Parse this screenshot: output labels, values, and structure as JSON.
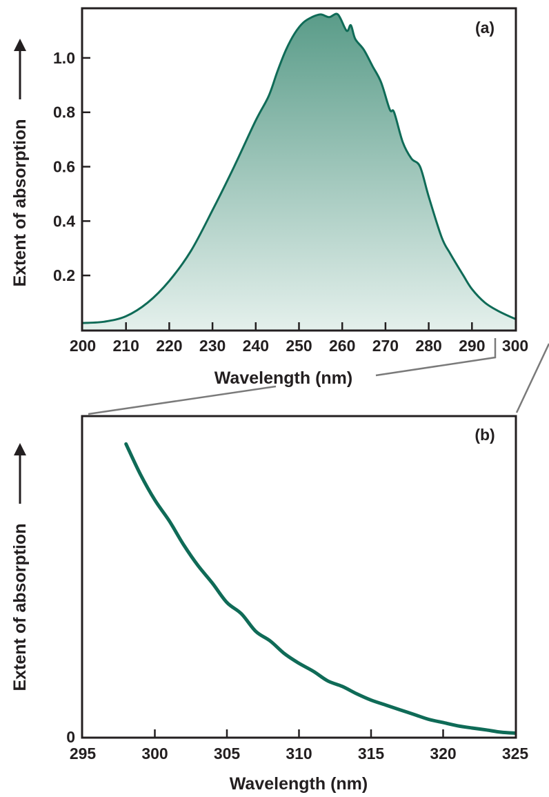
{
  "colors": {
    "curve": "#0f6b57",
    "fill_top": "#5a9c89",
    "fill_bottom": "#e4f0ec",
    "axis": "#231f20",
    "connector": "#7a7a7a"
  },
  "chart_data": [
    {
      "panel": "(a)",
      "type": "area",
      "title": "",
      "xlabel": "Wavelength (nm)",
      "ylabel": "Extent of absorption",
      "xlim": [
        200,
        300
      ],
      "ylim": [
        0,
        1.18
      ],
      "xticks": [
        200,
        210,
        220,
        230,
        240,
        250,
        260,
        270,
        280,
        290,
        300
      ],
      "yticks": [
        0.2,
        0.4,
        0.6,
        0.8,
        1.0
      ],
      "yticklabels": [
        "0.2",
        "0.4",
        "0.6",
        "0.8",
        "1.0"
      ],
      "grid": false,
      "series": [
        {
          "x": [
            200,
            205,
            210,
            215,
            220,
            225,
            230,
            235,
            240,
            243,
            245,
            247,
            249,
            251,
            253,
            255,
            257,
            259,
            261,
            262,
            263,
            265,
            267,
            269,
            271,
            272,
            274,
            276,
            278,
            280,
            283,
            285,
            288,
            290,
            293,
            296,
            300
          ],
          "y": [
            0.025,
            0.03,
            0.05,
            0.1,
            0.18,
            0.29,
            0.44,
            0.6,
            0.77,
            0.86,
            0.95,
            1.03,
            1.09,
            1.13,
            1.15,
            1.16,
            1.15,
            1.16,
            1.1,
            1.12,
            1.07,
            1.03,
            0.97,
            0.91,
            0.81,
            0.8,
            0.69,
            0.63,
            0.6,
            0.49,
            0.34,
            0.28,
            0.2,
            0.15,
            0.1,
            0.07,
            0.04
          ]
        }
      ]
    },
    {
      "panel": "(b)",
      "type": "line",
      "title": "",
      "xlabel": "Wavelength (nm)",
      "ylabel": "Extent of absorption",
      "xlim": [
        295,
        325
      ],
      "ylim": [
        0,
        1
      ],
      "xticks": [
        295,
        300,
        305,
        310,
        315,
        320,
        325
      ],
      "yticks": [
        0
      ],
      "yticklabels": [
        "0"
      ],
      "grid": false,
      "series": [
        {
          "x": [
            298,
            299,
            300,
            301,
            302,
            303,
            304,
            305,
            306,
            307,
            308,
            309,
            310,
            311,
            312,
            313,
            314,
            315,
            316,
            317,
            318,
            319,
            320,
            321,
            322,
            323,
            324,
            325
          ],
          "y": [
            0.915,
            0.82,
            0.74,
            0.675,
            0.6,
            0.535,
            0.48,
            0.42,
            0.385,
            0.33,
            0.3,
            0.26,
            0.23,
            0.205,
            0.175,
            0.158,
            0.135,
            0.115,
            0.1,
            0.085,
            0.07,
            0.055,
            0.045,
            0.035,
            0.028,
            0.022,
            0.015,
            0.012
          ]
        }
      ]
    }
  ]
}
